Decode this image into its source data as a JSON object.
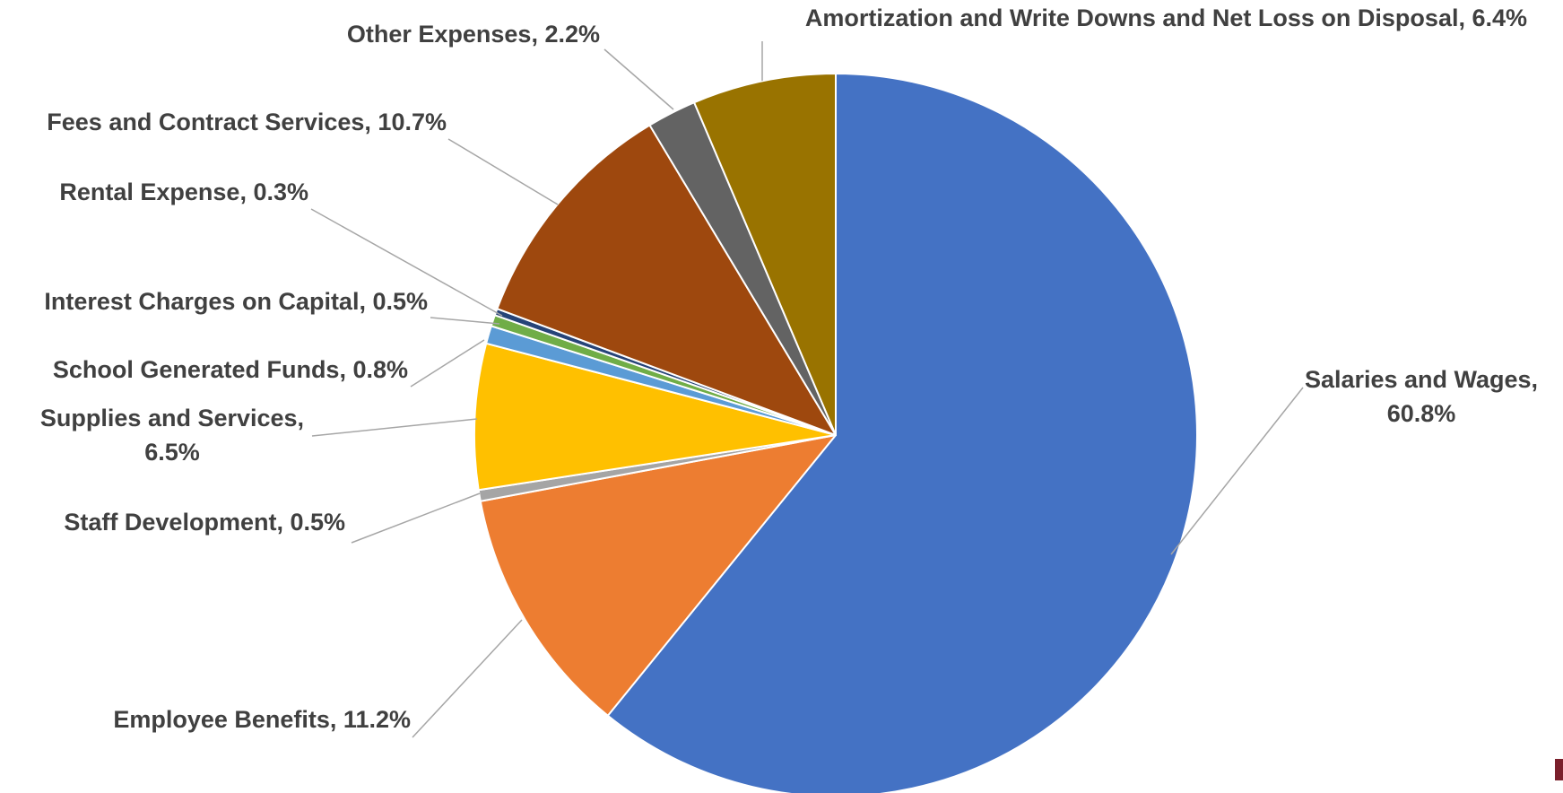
{
  "chart_data": {
    "type": "pie",
    "title": "",
    "start": "12 o'clock",
    "direction": "clockwise",
    "slices": [
      {
        "name": "Salaries and Wages",
        "value": 60.8,
        "label_lines": [
          "Salaries and Wages,",
          "60.8%"
        ],
        "color": "#4472c4"
      },
      {
        "name": "Employee Benefits",
        "value": 11.2,
        "label_lines": [
          "Employee Benefits, 11.2%"
        ],
        "color": "#ed7d31"
      },
      {
        "name": "Staff Development",
        "value": 0.5,
        "label_lines": [
          "Staff Development, 0.5%"
        ],
        "color": "#a5a5a5"
      },
      {
        "name": "Supplies and Services",
        "value": 6.5,
        "label_lines": [
          "Supplies and Services,",
          "6.5%"
        ],
        "color": "#ffc000"
      },
      {
        "name": "School Generated Funds",
        "value": 0.8,
        "label_lines": [
          "School Generated Funds, 0.8%"
        ],
        "color": "#5b9bd5"
      },
      {
        "name": "Interest Charges on Capital",
        "value": 0.5,
        "label_lines": [
          "Interest Charges on Capital, 0.5%"
        ],
        "color": "#70ad47"
      },
      {
        "name": "Rental Expense",
        "value": 0.3,
        "label_lines": [
          "Rental Expense, 0.3%"
        ],
        "color": "#264478"
      },
      {
        "name": "Fees and Contract Services",
        "value": 10.7,
        "label_lines": [
          "Fees and Contract Services, 10.7%"
        ],
        "color": "#9e480e"
      },
      {
        "name": "Other Expenses",
        "value": 2.2,
        "label_lines": [
          "Other Expenses, 2.2%"
        ],
        "color": "#636363"
      },
      {
        "name": "Amortization and Write Downs and Net Loss on Disposal",
        "value": 6.4,
        "label_lines": [
          "Amortization and Write Downs and Net Loss on Disposal, 6.4%"
        ],
        "color": "#997300"
      }
    ]
  }
}
